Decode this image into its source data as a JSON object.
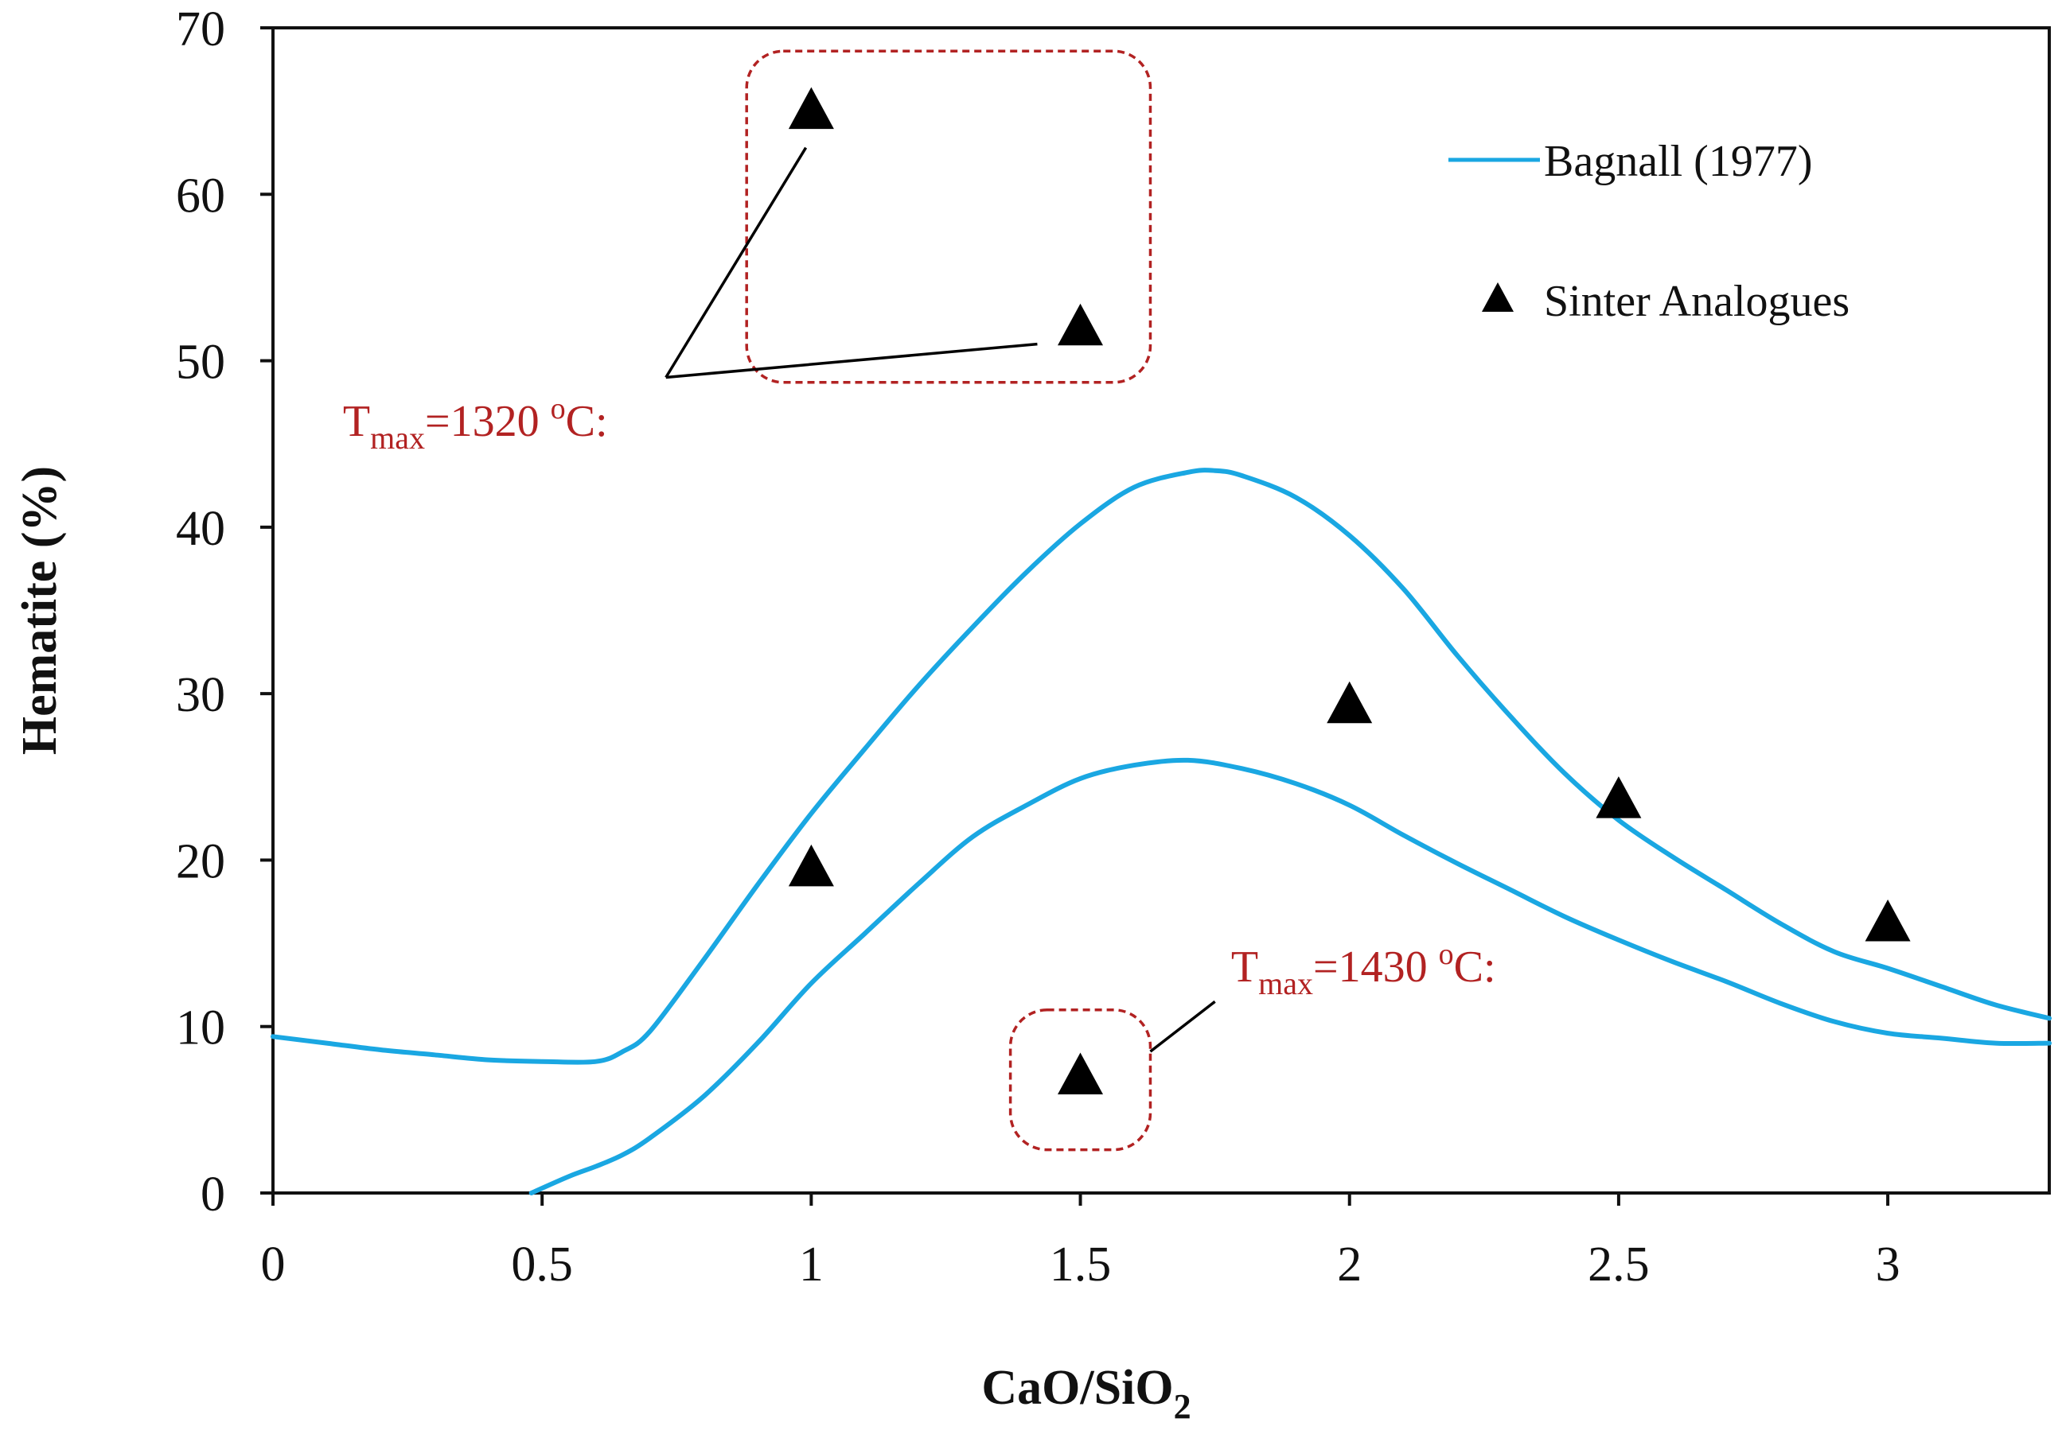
{
  "chart_data": {
    "type": "scatter",
    "title": "",
    "xlabel": {
      "main": "CaO/SiO",
      "sub": "2"
    },
    "ylabel": "Hematite  (%)",
    "xlim": [
      0,
      3.3
    ],
    "ylim": [
      0,
      70
    ],
    "x_ticks": [
      "0",
      "0.5",
      "1",
      "1.5",
      "2",
      "2.5",
      "3"
    ],
    "y_ticks": [
      "0",
      "10",
      "20",
      "30",
      "40",
      "50",
      "60",
      "70"
    ],
    "grid": false,
    "legend_position": "top-right",
    "series": [
      {
        "name": "Bagnall (1977)",
        "kind": "line",
        "color": "#1aa7e2",
        "curves": [
          {
            "id": "upper",
            "x": [
              0,
              0.1,
              0.2,
              0.3,
              0.4,
              0.5,
              0.6,
              0.65,
              0.7,
              0.8,
              0.9,
              1.0,
              1.1,
              1.2,
              1.3,
              1.4,
              1.5,
              1.6,
              1.7,
              1.75,
              1.8,
              1.9,
              2.0,
              2.1,
              2.2,
              2.3,
              2.4,
              2.5,
              2.6,
              2.7,
              2.8,
              2.9,
              3.0,
              3.1,
              3.2,
              3.3
            ],
            "y": [
              9.4,
              9.0,
              8.6,
              8.3,
              8.0,
              7.9,
              7.9,
              8.5,
              9.7,
              14.0,
              18.5,
              22.8,
              26.7,
              30.5,
              34.0,
              37.3,
              40.2,
              42.4,
              43.3,
              43.4,
              43.1,
              41.8,
              39.5,
              36.3,
              32.3,
              28.6,
              25.2,
              22.4,
              20.2,
              18.2,
              16.2,
              14.5,
              13.5,
              12.4,
              11.3,
              10.5
            ]
          },
          {
            "id": "lower",
            "x": [
              0.48,
              0.55,
              0.6,
              0.65,
              0.7,
              0.8,
              0.9,
              1.0,
              1.1,
              1.2,
              1.3,
              1.4,
              1.5,
              1.6,
              1.7,
              1.8,
              1.9,
              2.0,
              2.1,
              2.2,
              2.3,
              2.4,
              2.5,
              2.6,
              2.7,
              2.8,
              2.9,
              3.0,
              3.1,
              3.2,
              3.3
            ],
            "y": [
              0.0,
              1.0,
              1.6,
              2.3,
              3.3,
              5.8,
              9.0,
              12.6,
              15.6,
              18.6,
              21.4,
              23.3,
              24.9,
              25.7,
              26.0,
              25.5,
              24.6,
              23.3,
              21.5,
              19.8,
              18.2,
              16.6,
              15.2,
              13.9,
              12.7,
              11.4,
              10.3,
              9.6,
              9.3,
              9.0,
              9.0
            ]
          }
        ]
      },
      {
        "name": "Sinter Analogues",
        "kind": "marker",
        "marker": "triangle",
        "color": "#000000",
        "points": [
          {
            "x": 1.0,
            "y": 65.0
          },
          {
            "x": 1.5,
            "y": 52.0
          },
          {
            "x": 1.0,
            "y": 19.5
          },
          {
            "x": 1.5,
            "y": 7.0
          },
          {
            "x": 2.0,
            "y": 29.3
          },
          {
            "x": 2.5,
            "y": 23.6
          },
          {
            "x": 3.0,
            "y": 16.2
          }
        ]
      }
    ],
    "annotations": [
      {
        "id": "tmax-1320",
        "prefix": "T",
        "sub": "max",
        "suffix": "=1320 ",
        "degree": "o",
        "unit": "C:",
        "color": "#b22222",
        "anchor": {
          "x": 0.73,
          "y": 49.0
        },
        "targets": [
          {
            "x": 0.99,
            "y": 62.8
          },
          {
            "x": 1.42,
            "y": 51.0
          }
        ],
        "box": {
          "x0": 0.88,
          "x1": 1.63,
          "y0": 48.7,
          "y1": 68.6
        },
        "label_pos": {
          "x": 0.13,
          "y": 45.5
        }
      },
      {
        "id": "tmax-1430",
        "prefix": "T",
        "sub": "max",
        "suffix": "=1430 ",
        "degree": "o",
        "unit": "C:",
        "color": "#b22222",
        "anchor": {
          "x": 1.75,
          "y": 11.5
        },
        "targets": [
          {
            "x": 1.63,
            "y": 8.5
          }
        ],
        "box": {
          "x0": 1.37,
          "x1": 1.63,
          "y0": 2.6,
          "y1": 11.0
        },
        "label_pos": {
          "x": 1.78,
          "y": 12.7
        }
      }
    ]
  },
  "colors": {
    "line": "#1aa7e2",
    "marker": "#000000",
    "annotation": "#b22222",
    "axis": "#111111"
  }
}
